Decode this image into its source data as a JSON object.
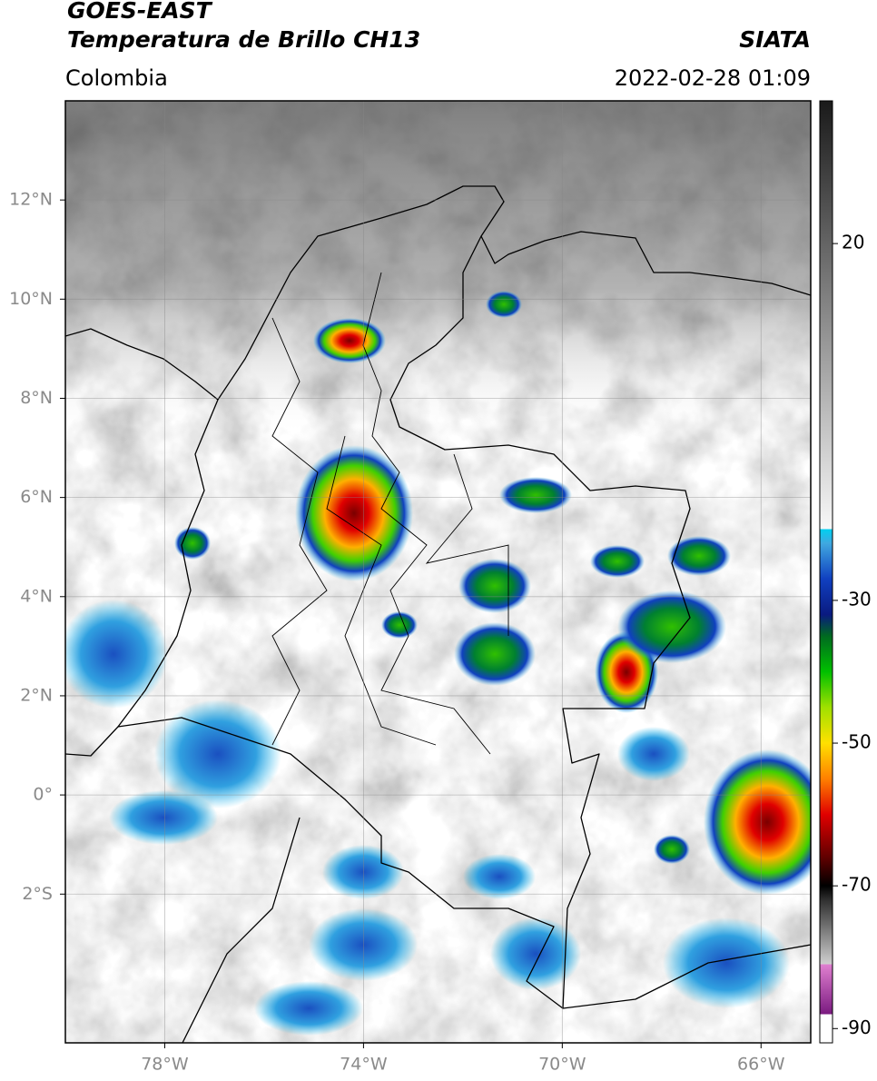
{
  "header": {
    "title": "GOES-EAST",
    "subtitle": "Temperatura de Brillo CH13",
    "source": "SIATA",
    "region": "Colombia",
    "datetime": "2022-02-28 01:09"
  },
  "map": {
    "xlim": [
      -80,
      -65
    ],
    "ylim": [
      -5,
      14
    ],
    "grid": true,
    "xticks": [
      {
        "value": -78,
        "label": "78°W"
      },
      {
        "value": -74,
        "label": "74°W"
      },
      {
        "value": -70,
        "label": "70°W"
      },
      {
        "value": -66,
        "label": "66°W"
      }
    ],
    "yticks": [
      {
        "value": 12,
        "label": "12°N"
      },
      {
        "value": 10,
        "label": "10°N"
      },
      {
        "value": 8,
        "label": "8°N"
      },
      {
        "value": 6,
        "label": "6°N"
      },
      {
        "value": 4,
        "label": "4°N"
      },
      {
        "value": 2,
        "label": "2°N"
      },
      {
        "value": 0,
        "label": "0°"
      },
      {
        "value": -2,
        "label": "2°S"
      }
    ]
  },
  "colorbar": {
    "clim": [
      -92,
      40
    ],
    "ticks": [
      20,
      -30,
      -50,
      -70,
      -90
    ],
    "stops": [
      [
        -92,
        "#ffffff"
      ],
      [
        -88,
        "#ffffff"
      ],
      [
        -88,
        "#7a1a80"
      ],
      [
        -81,
        "#e080d0"
      ],
      [
        -81,
        "#d0d0d0"
      ],
      [
        -72,
        "#303030"
      ],
      [
        -70,
        "#000000"
      ],
      [
        -66,
        "#600000"
      ],
      [
        -60,
        "#e00000"
      ],
      [
        -55,
        "#ff8000"
      ],
      [
        -50,
        "#ffe000"
      ],
      [
        -45,
        "#a0e000"
      ],
      [
        -40,
        "#00c000"
      ],
      [
        -35,
        "#006a20"
      ],
      [
        -32,
        "#0a1a80"
      ],
      [
        -27,
        "#1040c0"
      ],
      [
        -22,
        "#40a8e0"
      ],
      [
        -20,
        "#00d0f0"
      ],
      [
        -20,
        "#f8f8f8"
      ],
      [
        40,
        "#1a1a1a"
      ]
    ]
  }
}
